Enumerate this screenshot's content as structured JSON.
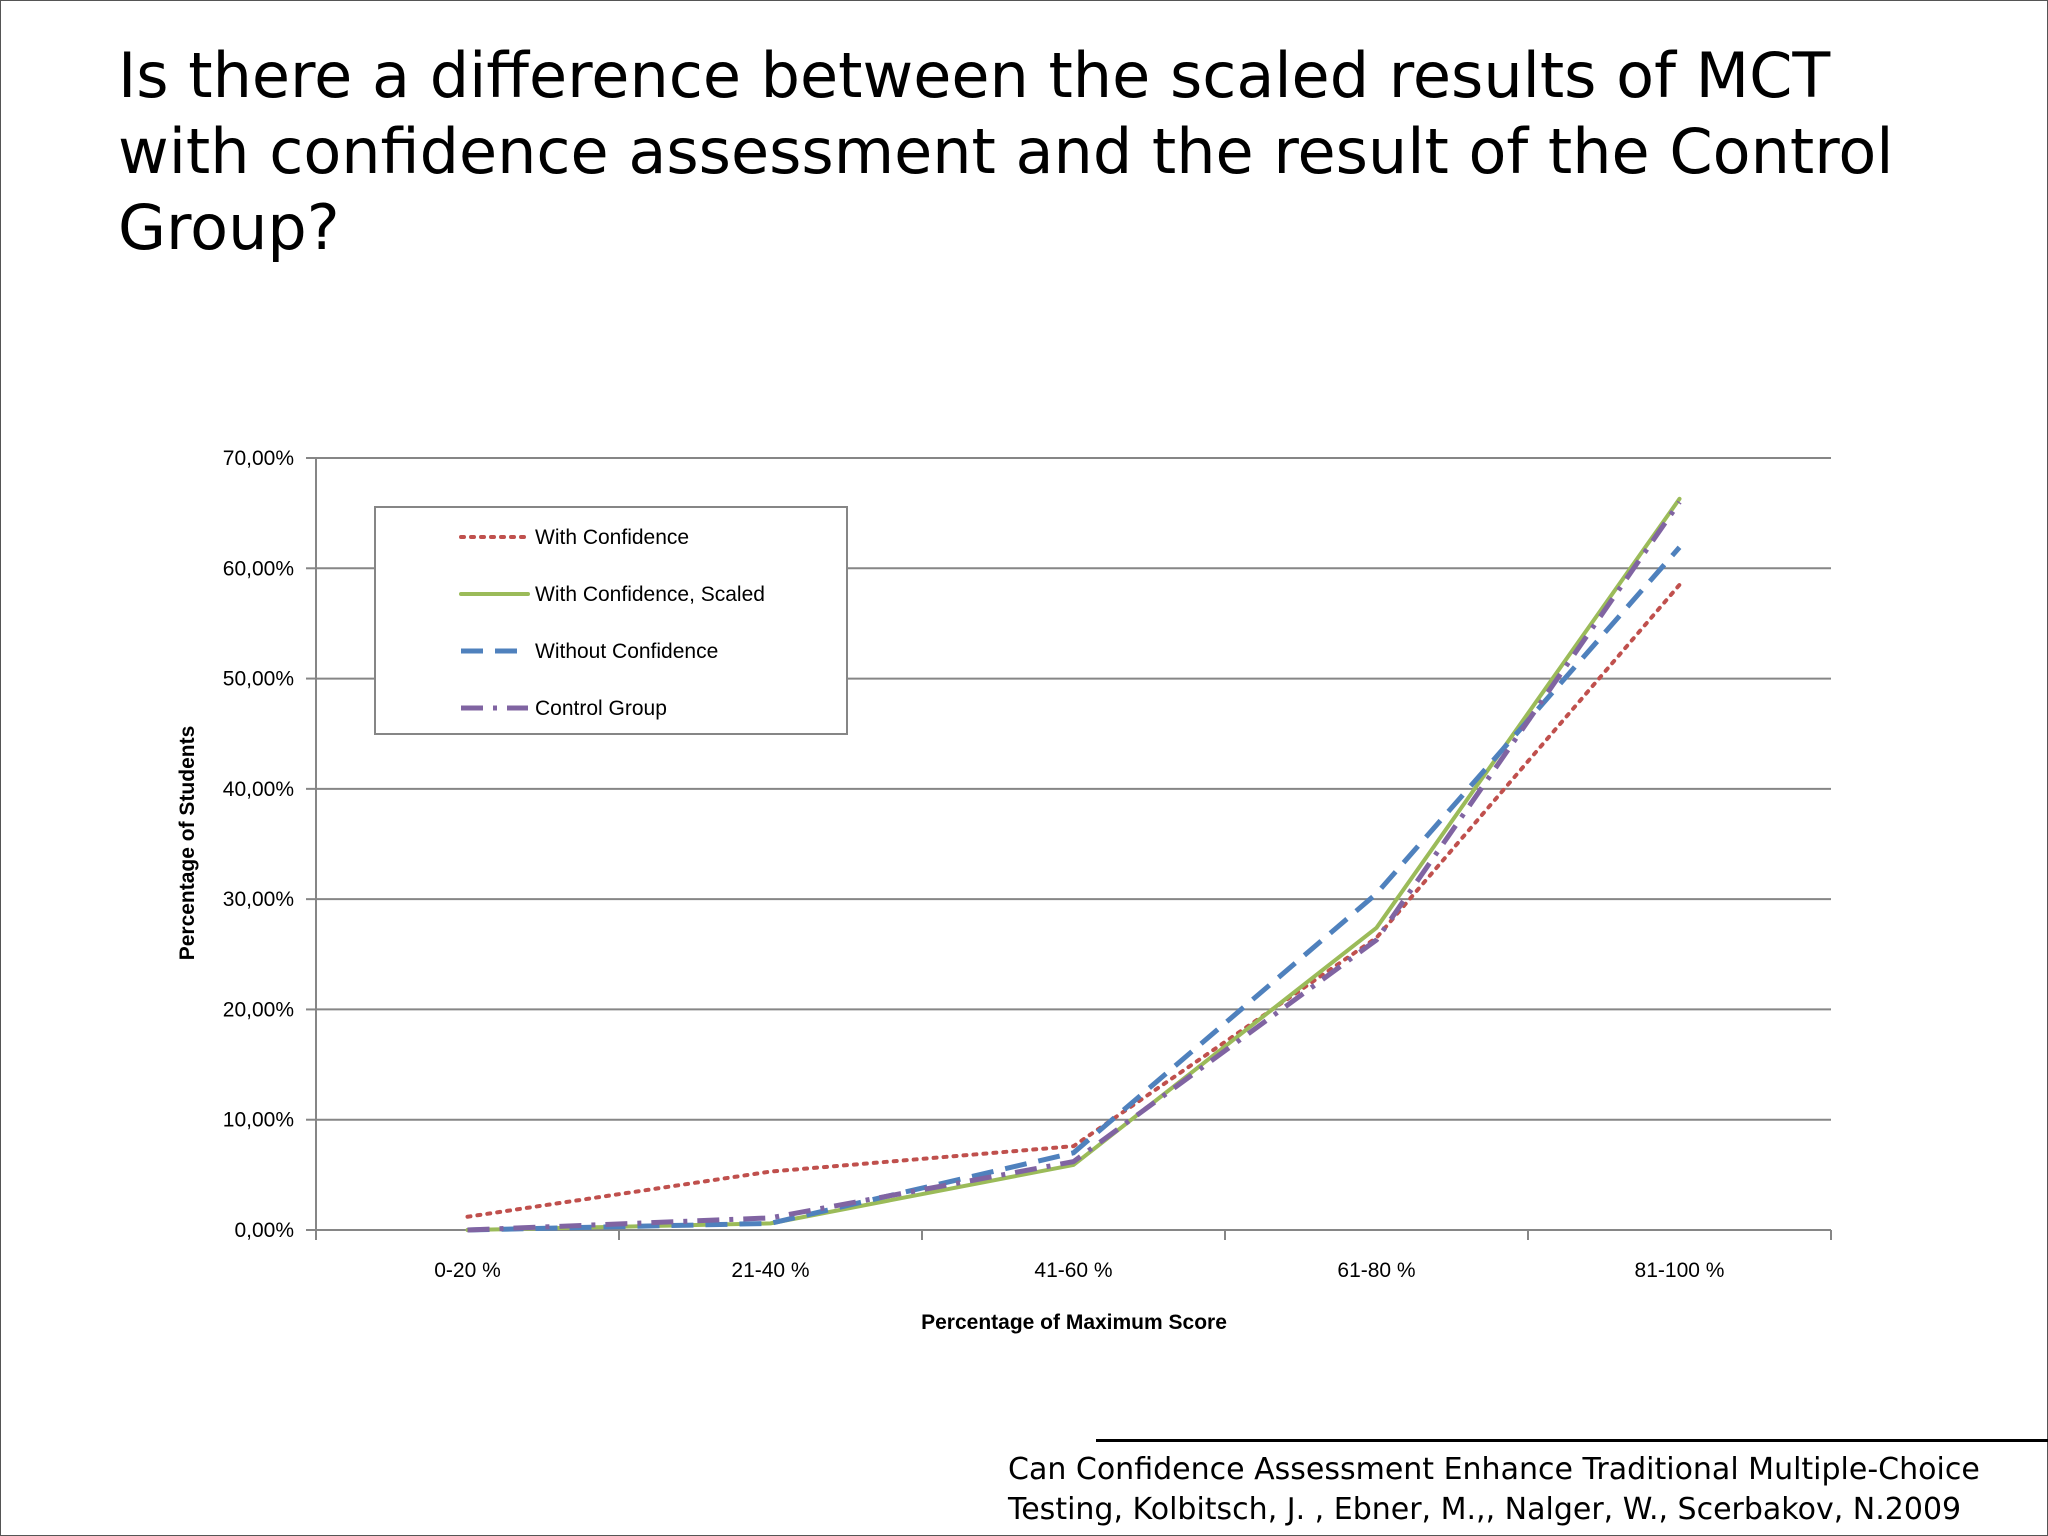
{
  "slide": {
    "title": "Is there a difference between the scaled results of MCT with confidence assessment and the result of the Control Group?",
    "citation_line1": "Can Confidence Assessment Enhance Traditional Multiple-Choice",
    "citation_line2": "Testing, Kolbitsch, J. , Ebner, M.,, Nalger, W., Scerbakov, N.2009"
  },
  "colors": {
    "with_confidence": "#c0504d",
    "with_confidence_scaled": "#9bbb59",
    "without_confidence": "#4f81bd",
    "control_group": "#8064a2",
    "gridline": "#868686",
    "axis": "#868686"
  },
  "chart_data": {
    "type": "line",
    "title": "",
    "xlabel": "Percentage of Maximum Score",
    "ylabel": "Percentage of Students",
    "categories": [
      "0-20 %",
      "21-40 %",
      "41-60 %",
      "61-80 %",
      "81-100 %"
    ],
    "y_ticks": [
      "0,00%",
      "10,00%",
      "20,00%",
      "30,00%",
      "40,00%",
      "50,00%",
      "60,00%",
      "70,00%"
    ],
    "ylim": [
      0,
      70
    ],
    "grid": true,
    "legend_position": "top-left",
    "series": [
      {
        "name": "With Confidence",
        "style": "dotted",
        "values": [
          1.2,
          5.3,
          7.6,
          26.5,
          58.5
        ]
      },
      {
        "name": "With Confidence, Scaled",
        "style": "solid",
        "values": [
          0.0,
          0.6,
          5.9,
          27.4,
          66.3
        ]
      },
      {
        "name": "Without Confidence",
        "style": "dashed",
        "values": [
          0.0,
          0.6,
          7.0,
          30.5,
          61.9
        ]
      },
      {
        "name": "Control Group",
        "style": "dashdot",
        "values": [
          0.0,
          1.1,
          6.2,
          26.3,
          66.0
        ]
      }
    ]
  }
}
